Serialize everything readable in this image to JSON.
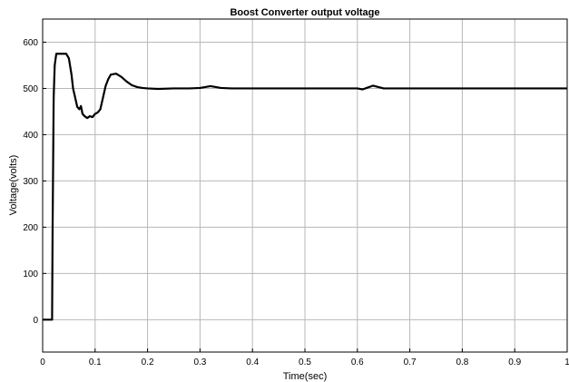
{
  "chart_data": {
    "type": "line",
    "title": "Boost Converter output voltage",
    "xlabel": "Time(sec)",
    "ylabel": "Voltage(volts)",
    "xlim": [
      0,
      1
    ],
    "ylim": [
      -70,
      650
    ],
    "xticks": [
      0,
      0.1,
      0.2,
      0.3,
      0.4,
      0.5,
      0.6,
      0.7,
      0.8,
      0.9,
      1
    ],
    "xtick_labels": [
      "0",
      "0.1",
      "0.2",
      "0.3",
      "0.4",
      "0.5",
      "0.6",
      "0.7",
      "0.8",
      "0.9",
      "1"
    ],
    "yticks": [
      0,
      100,
      200,
      300,
      400,
      500,
      600
    ],
    "ytick_labels": [
      "0",
      "100",
      "200",
      "300",
      "400",
      "500",
      "600"
    ],
    "grid": true,
    "series_color": "#000000",
    "series": [
      {
        "x": [
          0,
          0.018,
          0.019,
          0.021,
          0.023,
          0.026,
          0.03,
          0.045,
          0.05,
          0.055,
          0.058,
          0.062,
          0.066,
          0.07,
          0.073,
          0.076,
          0.08,
          0.085,
          0.09,
          0.095,
          0.1,
          0.105,
          0.11,
          0.115,
          0.12,
          0.125,
          0.13,
          0.14,
          0.15,
          0.16,
          0.17,
          0.18,
          0.19,
          0.2,
          0.22,
          0.25,
          0.28,
          0.3,
          0.31,
          0.32,
          0.33,
          0.34,
          0.36,
          0.4,
          0.5,
          0.6,
          0.61,
          0.62,
          0.63,
          0.64,
          0.65,
          0.7,
          0.8,
          0.9,
          1.0
        ],
        "y": [
          0,
          0,
          200,
          480,
          550,
          575,
          575,
          575,
          565,
          530,
          500,
          480,
          460,
          455,
          462,
          445,
          440,
          436,
          440,
          438,
          445,
          448,
          455,
          480,
          505,
          520,
          530,
          532,
          525,
          515,
          507,
          503,
          501,
          500,
          499,
          500,
          500,
          501,
          503,
          505,
          503,
          501,
          500,
          500,
          500,
          500,
          498,
          502,
          506,
          503,
          500,
          500,
          500,
          500,
          500
        ]
      }
    ]
  }
}
